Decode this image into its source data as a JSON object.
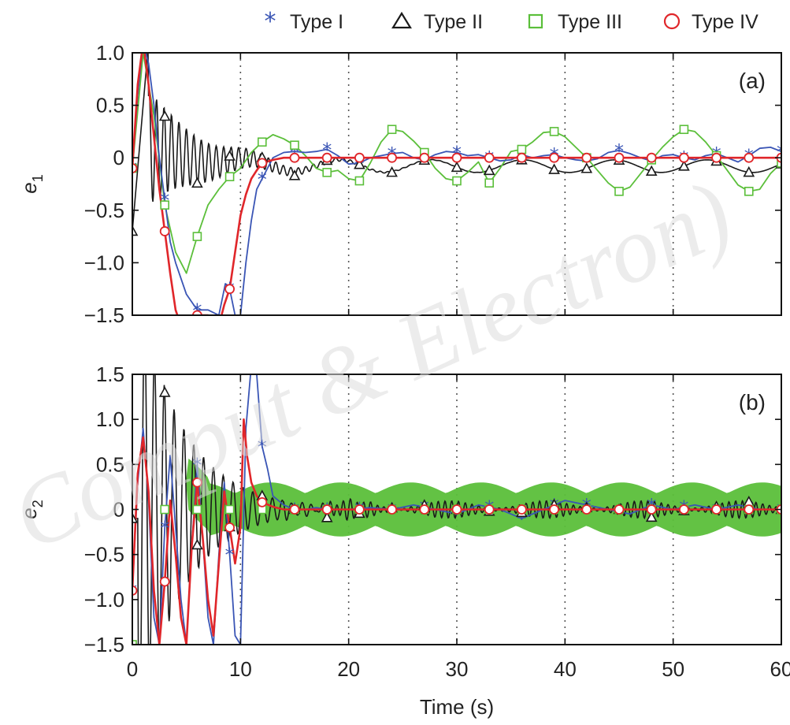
{
  "legend": [
    {
      "label": "Type I",
      "color": "#3a55b5",
      "marker": "asterisk"
    },
    {
      "label": "Type II",
      "color": "#1a1a1a",
      "marker": "triangle"
    },
    {
      "label": "Type III",
      "color": "#5bbf3a",
      "marker": "square"
    },
    {
      "label": "Type IV",
      "color": "#e0262a",
      "marker": "circle"
    }
  ],
  "watermark": "Comput & Electron)",
  "chart_data": [
    {
      "type": "line",
      "panel_label": "(a)",
      "ylabel": "e",
      "ylabel_sub": "1",
      "xlabel": "",
      "xlim": [
        0,
        60
      ],
      "ylim": [
        -1.5,
        1.0
      ],
      "xticks": [
        0,
        10,
        20,
        30,
        40,
        50,
        60
      ],
      "yticks": [
        1.0,
        0.5,
        0,
        -0.5,
        -1.0,
        -1.5
      ],
      "ytick_labels": [
        "1.0",
        "0.5",
        "0",
        "−0.5",
        "−1.0",
        "−1.5"
      ],
      "grid": "vertical dotted",
      "series": [
        {
          "name": "Type I",
          "x": [
            0,
            0.5,
            1,
            1.5,
            2,
            2.5,
            3,
            3.5,
            4,
            5,
            6,
            7,
            8,
            8.6,
            9,
            9.5,
            10,
            10.5,
            11,
            11.5,
            12,
            12.5,
            13,
            14,
            15,
            16,
            17,
            18,
            19,
            20,
            21,
            22,
            23,
            24,
            25,
            26,
            27,
            28,
            29,
            30,
            31,
            32,
            33,
            34,
            35,
            36,
            37,
            38,
            39,
            40,
            41,
            42,
            43,
            44,
            45,
            46,
            47,
            48,
            49,
            50,
            51,
            52,
            53,
            54,
            55,
            56,
            57,
            58,
            59,
            60
          ],
          "y": [
            -0.1,
            0.6,
            1.1,
            0.9,
            0.5,
            0.0,
            -0.4,
            -0.8,
            -1.0,
            -1.3,
            -1.45,
            -1.45,
            -1.5,
            -1.2,
            -1.25,
            -1.5,
            -1.5,
            -1.0,
            -0.6,
            -0.3,
            -0.2,
            -0.1,
            0.0,
            0.05,
            0.06,
            0.05,
            0.06,
            0.08,
            0.02,
            -0.06,
            -0.05,
            0.0,
            0.02,
            0.04,
            0.05,
            0.0,
            -0.02,
            0.03,
            0.06,
            0.05,
            0.02,
            0.03,
            0.0,
            -0.03,
            -0.02,
            0.03,
            0.0,
            0.02,
            0.03,
            0.0,
            -0.02,
            -0.03,
            -0.01,
            0.05,
            0.07,
            0.04,
            0.0,
            -0.03,
            0.02,
            0.03,
            0.0,
            -0.02,
            0.02,
            0.04,
            0.0,
            -0.04,
            0.02,
            0.09,
            0.1,
            0.06
          ],
          "marker_x": [
            0,
            3,
            6,
            9,
            12,
            15,
            18,
            21,
            24,
            27,
            30,
            33,
            36,
            39,
            42,
            45,
            48,
            51,
            54,
            57,
            60
          ]
        },
        {
          "name": "Type II",
          "x": [],
          "y": [],
          "marker_x": [
            0,
            3,
            6,
            9,
            12,
            15,
            18,
            21,
            24,
            27,
            30,
            33,
            36,
            39,
            42,
            45,
            48,
            51,
            54,
            57,
            60
          ]
        },
        {
          "name": "Type III",
          "x": [
            0,
            1,
            2,
            3,
            4,
            5,
            6,
            7,
            8,
            9,
            10,
            11,
            12,
            13,
            14,
            15,
            16,
            17,
            18,
            19,
            20,
            21,
            22,
            23,
            24,
            25,
            26,
            27,
            28,
            29,
            30,
            31,
            32,
            33,
            34,
            35,
            36,
            37,
            38,
            39,
            40,
            41,
            42,
            43,
            44,
            45,
            46,
            47,
            48,
            49,
            50,
            51,
            52,
            53,
            54,
            55,
            56,
            57,
            58,
            59,
            60
          ],
          "y": [
            -0.1,
            1.0,
            0.4,
            -0.45,
            -0.9,
            -1.1,
            -0.75,
            -0.45,
            -0.3,
            -0.18,
            -0.1,
            0.05,
            0.15,
            0.22,
            0.18,
            0.12,
            0.02,
            -0.1,
            -0.14,
            -0.12,
            -0.2,
            -0.22,
            -0.05,
            0.15,
            0.27,
            0.25,
            0.16,
            0.05,
            -0.1,
            -0.2,
            -0.22,
            -0.14,
            -0.04,
            -0.24,
            -0.1,
            0.06,
            0.08,
            0.15,
            0.24,
            0.25,
            0.2,
            0.1,
            0.0,
            -0.12,
            -0.24,
            -0.32,
            -0.28,
            -0.15,
            -0.02,
            0.1,
            0.2,
            0.27,
            0.25,
            0.15,
            0.02,
            -0.12,
            -0.26,
            -0.32,
            -0.3,
            -0.15,
            -0.05
          ],
          "marker_x": [
            0,
            3,
            6,
            9,
            12,
            15,
            18,
            21,
            24,
            27,
            30,
            33,
            36,
            39,
            42,
            45,
            48,
            51,
            54,
            57,
            60
          ]
        },
        {
          "name": "Type IV",
          "x": [
            0,
            0.5,
            1,
            1.5,
            2,
            2.5,
            3,
            3.5,
            4,
            4.5,
            5,
            5.5,
            6,
            7,
            8,
            8.5,
            9,
            9.5,
            10,
            10.5,
            11,
            11.5,
            12,
            13,
            14,
            15,
            16,
            17,
            18,
            20,
            25,
            30,
            35,
            40,
            45,
            50,
            55,
            60
          ],
          "y": [
            -0.1,
            0.7,
            1.1,
            0.7,
            0.2,
            -0.3,
            -0.7,
            -1.1,
            -1.45,
            -1.6,
            -1.7,
            -1.6,
            -1.5,
            -1.5,
            -1.6,
            -1.4,
            -1.25,
            -0.9,
            -0.55,
            -0.35,
            -0.2,
            -0.12,
            -0.05,
            -0.02,
            0.0,
            0.0,
            0.0,
            0.0,
            0.0,
            0.0,
            0.0,
            0.0,
            0.0,
            0.0,
            0.0,
            0.0,
            0.0,
            0.0
          ],
          "marker_x": [
            0,
            3,
            6,
            9,
            12,
            15,
            18,
            21,
            24,
            27,
            30,
            33,
            36,
            39,
            42,
            45,
            48,
            51,
            54,
            57,
            60
          ]
        }
      ]
    },
    {
      "type": "line",
      "panel_label": "(b)",
      "ylabel": "e",
      "ylabel_sub": "2",
      "xlabel": "Time (s)",
      "xlim": [
        0,
        60
      ],
      "ylim": [
        -1.5,
        1.5
      ],
      "xticks": [
        0,
        10,
        20,
        30,
        40,
        50,
        60
      ],
      "yticks": [
        1.5,
        1.0,
        0.5,
        0,
        -0.5,
        -1.0,
        -1.5
      ],
      "ytick_labels": [
        "1.5",
        "1.0",
        "0.5",
        "0",
        "−0.5",
        "−1.0",
        "−1.5"
      ],
      "grid": "vertical dotted",
      "series": [
        {
          "name": "Type I",
          "x": [
            0,
            0.5,
            1,
            1.5,
            2,
            2.5,
            3,
            3.5,
            4,
            4.5,
            5,
            5.5,
            6,
            6.5,
            7,
            7.5,
            8,
            8.5,
            9,
            9.5,
            10,
            10.5,
            11,
            11.5,
            12,
            12.5,
            13,
            14,
            15,
            16,
            17,
            18,
            20,
            22,
            24,
            26,
            28,
            30,
            32,
            34,
            36,
            38,
            40,
            42,
            44,
            46,
            48,
            50,
            52,
            54,
            56,
            58,
            60
          ],
          "y": [
            -0.9,
            0.3,
            0.9,
            0.1,
            -1.2,
            -1.5,
            -0.2,
            0.6,
            -0.2,
            -1.0,
            -1.5,
            -0.4,
            0.5,
            -0.3,
            -1.2,
            -1.5,
            -0.5,
            0.3,
            -0.5,
            -1.4,
            -1.5,
            0.9,
            1.6,
            1.5,
            0.7,
            0.45,
            0.15,
            0.05,
            0.0,
            0.0,
            0.02,
            0.0,
            0.0,
            0.02,
            0.0,
            0.05,
            0.0,
            -0.05,
            0.05,
            0.0,
            -0.1,
            0.0,
            0.1,
            0.05,
            0.0,
            -0.05,
            0.05,
            0.0,
            0.05,
            0.0,
            0.05,
            0.0,
            0.0
          ],
          "marker_x": [
            0,
            3,
            6,
            9,
            12,
            15,
            18,
            21,
            24,
            27,
            30,
            33,
            36,
            39,
            42,
            45,
            48,
            51,
            54,
            57,
            60
          ]
        },
        {
          "name": "Type II",
          "x": [],
          "y": [],
          "marker_x": [
            0,
            3,
            6,
            9,
            12,
            15,
            18,
            21,
            24,
            27,
            30,
            33,
            36,
            39,
            42,
            45,
            48,
            51,
            54,
            57,
            60
          ]
        },
        {
          "name": "Type III",
          "x": [
            0,
            1,
            2,
            3,
            4,
            5,
            6,
            8,
            10,
            12,
            14,
            16,
            18,
            20,
            22,
            24,
            26,
            28,
            30,
            32,
            34,
            36,
            38,
            40,
            42,
            44,
            46,
            48,
            50,
            52,
            54,
            56,
            58,
            60
          ],
          "y": [
            -1.5,
            -1.5,
            -1.5,
            -1.3,
            -0.7,
            0.5,
            0.3,
            0.2,
            0.05,
            0.0,
            0.0,
            0.0,
            0.0,
            0.0,
            0.0,
            0.0,
            0.0,
            0.0,
            0.0,
            0.0,
            0.0,
            0.0,
            0.0,
            0.0,
            0.0,
            0.0,
            0.0,
            0.0,
            0.0,
            0.0,
            0.0,
            0.0,
            0.0,
            0.0
          ],
          "marker_x": [
            0,
            3,
            6,
            9,
            12,
            15,
            18,
            21,
            24,
            27,
            30,
            33,
            36,
            39,
            42,
            45,
            48,
            51,
            54,
            57,
            60
          ]
        },
        {
          "name": "Type IV",
          "x": [
            0,
            0.5,
            1,
            1.5,
            2,
            2.5,
            3,
            3.5,
            4,
            4.5,
            5,
            5.5,
            6,
            6.5,
            7,
            7.5,
            8,
            8.5,
            9,
            9.5,
            10,
            10.3,
            10.6,
            11,
            11.5,
            12,
            13,
            14,
            16,
            20,
            30,
            40,
            50,
            60
          ],
          "y": [
            -0.9,
            0.4,
            0.8,
            0.2,
            -0.9,
            -1.5,
            -0.8,
            0.1,
            -0.5,
            -1.2,
            -1.5,
            -0.4,
            0.3,
            -0.3,
            -1.0,
            -1.4,
            -0.6,
            0.2,
            -0.2,
            -0.6,
            -0.2,
            1.0,
            0.6,
            0.3,
            0.15,
            0.08,
            0.03,
            0.0,
            0.0,
            0.0,
            0.0,
            0.0,
            0.0,
            0.0
          ],
          "marker_x": [
            0,
            3,
            6,
            9,
            12,
            15,
            18,
            21,
            24,
            27,
            30,
            33,
            36,
            39,
            42,
            45,
            48,
            51,
            54,
            57,
            60
          ]
        }
      ]
    }
  ]
}
